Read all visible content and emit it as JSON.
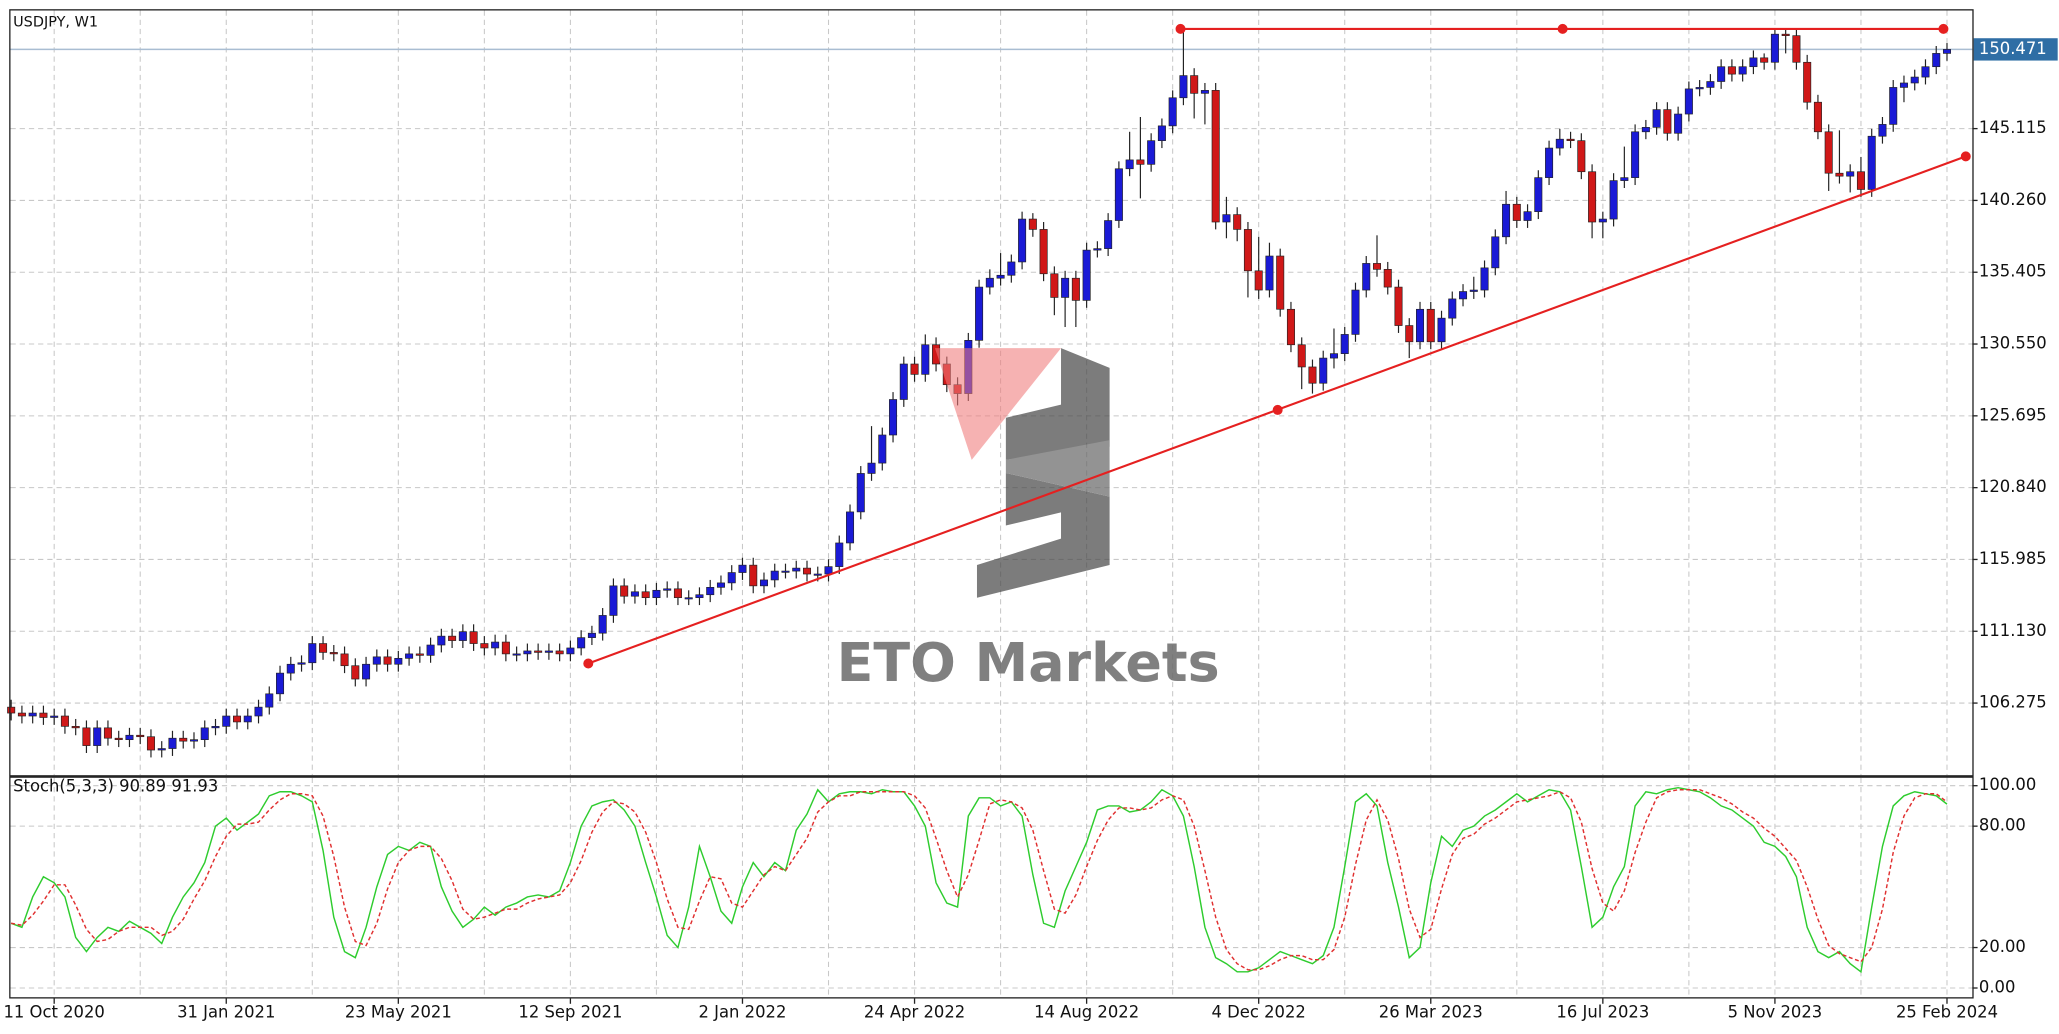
{
  "chart_data": {
    "type": "candlestick",
    "title": "USDJPY, W1",
    "categories": [
      null,
      null,
      null,
      null,
      "11 Oct 2020",
      null,
      null,
      null,
      null,
      null,
      null,
      null,
      null,
      null,
      null,
      null,
      null,
      null,
      null,
      null,
      "31 Jan 2021",
      null,
      null,
      null,
      null,
      null,
      null,
      null,
      null,
      null,
      null,
      null,
      null,
      null,
      null,
      null,
      "23 May 2021",
      null,
      null,
      null,
      null,
      null,
      null,
      null,
      null,
      null,
      null,
      null,
      null,
      null,
      null,
      null,
      "12 Sep 2021",
      null,
      null,
      null,
      null,
      null,
      null,
      null,
      null,
      null,
      null,
      null,
      null,
      null,
      null,
      null,
      "2 Jan 2022",
      null,
      null,
      null,
      null,
      null,
      null,
      null,
      null,
      null,
      null,
      null,
      null,
      null,
      null,
      null,
      "24 Apr 2022",
      null,
      null,
      null,
      null,
      null,
      null,
      null,
      null,
      null,
      null,
      null,
      null,
      null,
      null,
      null,
      "14 Aug 2022",
      null,
      null,
      null,
      null,
      null,
      null,
      null,
      null,
      null,
      null,
      null,
      null,
      null,
      null,
      null,
      "4 Dec 2022",
      null,
      null,
      null,
      null,
      null,
      null,
      null,
      null,
      null,
      null,
      null,
      null,
      null,
      null,
      null,
      "26 Mar 2023",
      null,
      null,
      null,
      null,
      null,
      null,
      null,
      null,
      null,
      null,
      null,
      null,
      null,
      null,
      null,
      "16 Jul 2023",
      null,
      null,
      null,
      null,
      null,
      null,
      null,
      null,
      null,
      null,
      null,
      null,
      null,
      null,
      null,
      "5 Nov 2023",
      null,
      null,
      null,
      null,
      null,
      null,
      null,
      null,
      null,
      null,
      null,
      null,
      null,
      null,
      null,
      "25 Feb 2024"
    ],
    "open": [
      106.0,
      105.6,
      105.4,
      105.6,
      105.3,
      105.4,
      104.7,
      104.6,
      103.4,
      104.6,
      103.9,
      103.8,
      104.1,
      104.0,
      103.1,
      103.2,
      103.9,
      103.7,
      103.8,
      104.6,
      104.7,
      105.4,
      105.0,
      105.4,
      106.0,
      106.9,
      108.3,
      108.9,
      109.0,
      110.3,
      109.7,
      109.6,
      108.8,
      107.9,
      108.9,
      109.4,
      108.9,
      109.3,
      109.6,
      109.5,
      110.2,
      110.8,
      110.5,
      111.1,
      110.3,
      110.0,
      110.4,
      109.6,
      109.6,
      109.8,
      109.7,
      109.8,
      109.6,
      110.0,
      110.7,
      111.0,
      112.2,
      114.2,
      113.5,
      113.8,
      113.4,
      113.9,
      114.0,
      113.4,
      113.4,
      113.6,
      114.1,
      114.4,
      115.1,
      115.6,
      114.2,
      114.6,
      115.2,
      115.2,
      115.4,
      115.0,
      115.0,
      115.5,
      117.1,
      119.2,
      121.8,
      122.5,
      124.4,
      126.8,
      129.2,
      128.5,
      130.5,
      129.2,
      127.8,
      127.2,
      130.8,
      134.4,
      135.0,
      135.2,
      136.1,
      139.0,
      138.3,
      135.3,
      133.7,
      135.0,
      133.5,
      136.9,
      137.0,
      138.9,
      142.4,
      143.0,
      142.7,
      144.3,
      145.3,
      147.2,
      148.7,
      147.5,
      147.7,
      138.8,
      139.3,
      138.3,
      135.5,
      134.2,
      136.5,
      132.9,
      130.5,
      129.0,
      127.9,
      129.6,
      129.9,
      131.2,
      134.2,
      136.0,
      135.6,
      134.4,
      131.8,
      130.7,
      132.9,
      130.7,
      132.3,
      133.6,
      134.1,
      134.2,
      135.7,
      137.8,
      140.0,
      138.9,
      139.5,
      141.8,
      143.8,
      144.4,
      144.3,
      142.2,
      138.8,
      139.0,
      141.6,
      141.8,
      144.9,
      145.2,
      146.4,
      144.8,
      146.1,
      147.8,
      147.9,
      148.3,
      149.3,
      148.8,
      149.3,
      149.9,
      149.6,
      151.5,
      151.4,
      149.6,
      146.9,
      144.9,
      142.1,
      141.9,
      142.2,
      141.0,
      144.6,
      145.4,
      147.9,
      148.2,
      148.6,
      149.3,
      150.2
    ],
    "high": [
      106.5,
      106.1,
      106.1,
      106.1,
      105.9,
      105.9,
      105.2,
      105.1,
      105.1,
      105.1,
      104.4,
      104.6,
      104.6,
      104.5,
      103.7,
      104.4,
      104.4,
      104.3,
      105.1,
      105.2,
      105.9,
      105.9,
      105.9,
      106.5,
      107.4,
      108.8,
      109.4,
      109.5,
      110.8,
      110.8,
      110.2,
      110.1,
      109.3,
      109.4,
      109.9,
      109.9,
      109.8,
      110.1,
      110.1,
      110.7,
      111.3,
      111.3,
      111.6,
      111.6,
      110.8,
      110.9,
      110.9,
      110.1,
      110.3,
      110.3,
      110.3,
      110.3,
      110.5,
      111.2,
      111.5,
      112.7,
      114.7,
      114.7,
      114.3,
      114.3,
      114.4,
      114.5,
      114.5,
      113.9,
      114.1,
      114.6,
      114.9,
      115.6,
      116.1,
      116.1,
      115.1,
      115.7,
      115.7,
      115.9,
      115.9,
      115.5,
      116.0,
      117.6,
      119.7,
      122.3,
      125.0,
      124.9,
      127.3,
      129.7,
      129.7,
      131.2,
      131.0,
      129.7,
      128.3,
      131.3,
      134.9,
      135.6,
      136.7,
      136.6,
      139.5,
      139.4,
      138.8,
      135.8,
      135.5,
      135.5,
      137.4,
      137.5,
      139.4,
      142.9,
      144.9,
      145.9,
      144.8,
      145.8,
      147.7,
      151.9,
      149.2,
      148.2,
      148.2,
      140.5,
      139.8,
      138.8,
      137.8,
      137.4,
      137.0,
      133.4,
      131.0,
      129.5,
      130.1,
      131.6,
      131.7,
      134.7,
      136.5,
      137.9,
      136.1,
      134.9,
      132.3,
      133.4,
      133.4,
      132.8,
      134.1,
      134.6,
      135.1,
      136.2,
      138.3,
      140.9,
      140.5,
      140.0,
      142.3,
      144.3,
      145.1,
      144.9,
      144.8,
      142.7,
      139.5,
      142.1,
      143.9,
      145.4,
      145.7,
      146.9,
      146.9,
      146.6,
      148.3,
      148.4,
      148.8,
      149.8,
      149.8,
      149.8,
      150.4,
      150.2,
      151.9,
      151.9,
      151.9,
      150.1,
      147.4,
      145.4,
      145.0,
      142.7,
      143.2,
      145.1,
      145.9,
      148.4,
      148.7,
      149.1,
      149.8,
      150.7,
      150.9
    ],
    "low": [
      105.1,
      104.9,
      104.9,
      104.8,
      104.8,
      104.2,
      104.1,
      102.9,
      102.9,
      103.4,
      103.3,
      103.3,
      103.5,
      102.6,
      102.6,
      102.7,
      103.2,
      103.2,
      103.3,
      104.1,
      104.2,
      104.5,
      104.5,
      104.9,
      105.5,
      106.4,
      107.8,
      108.4,
      108.5,
      109.2,
      109.1,
      108.3,
      107.4,
      107.4,
      108.4,
      108.4,
      108.4,
      108.8,
      109.0,
      109.0,
      109.7,
      110.0,
      110.0,
      109.8,
      109.5,
      109.5,
      109.1,
      109.1,
      109.1,
      109.2,
      109.2,
      109.1,
      109.1,
      109.5,
      110.2,
      110.5,
      111.7,
      113.0,
      113.0,
      112.9,
      112.9,
      113.4,
      112.9,
      112.9,
      112.9,
      113.1,
      113.6,
      113.9,
      114.6,
      113.7,
      113.7,
      114.1,
      114.7,
      114.7,
      114.5,
      114.5,
      114.5,
      115.0,
      116.6,
      118.7,
      121.3,
      122.0,
      123.9,
      126.3,
      128.0,
      128.0,
      128.7,
      127.3,
      126.4,
      126.7,
      130.3,
      133.9,
      134.5,
      134.7,
      135.6,
      137.8,
      134.8,
      132.5,
      131.7,
      131.7,
      133.0,
      136.4,
      136.5,
      138.4,
      141.9,
      140.4,
      142.2,
      143.8,
      144.8,
      146.7,
      145.8,
      145.4,
      138.3,
      137.7,
      137.5,
      133.7,
      133.6,
      133.7,
      132.4,
      130.0,
      127.5,
      127.2,
      127.4,
      128.9,
      129.4,
      130.7,
      133.7,
      135.1,
      133.9,
      131.3,
      129.6,
      130.2,
      130.2,
      130.2,
      131.8,
      133.1,
      133.6,
      133.7,
      135.2,
      137.3,
      138.4,
      138.4,
      139.0,
      141.3,
      143.3,
      143.8,
      141.7,
      137.7,
      137.7,
      138.5,
      141.1,
      141.3,
      144.4,
      144.7,
      144.3,
      144.3,
      145.6,
      147.3,
      147.4,
      147.8,
      148.3,
      148.3,
      148.8,
      149.1,
      149.1,
      150.2,
      149.1,
      146.4,
      144.4,
      140.9,
      141.4,
      140.8,
      140.5,
      140.5,
      144.1,
      144.9,
      146.9,
      147.7,
      148.1,
      148.8,
      149.7
    ],
    "close": [
      105.6,
      105.4,
      105.6,
      105.3,
      105.4,
      104.7,
      104.6,
      103.4,
      104.6,
      103.9,
      103.8,
      104.1,
      104.0,
      103.1,
      103.2,
      103.9,
      103.7,
      103.8,
      104.6,
      104.7,
      105.4,
      105.0,
      105.4,
      106.0,
      106.9,
      108.3,
      108.9,
      109.0,
      110.3,
      109.7,
      109.6,
      108.8,
      107.9,
      108.9,
      109.4,
      108.9,
      109.3,
      109.6,
      109.5,
      110.2,
      110.8,
      110.5,
      111.1,
      110.3,
      110.0,
      110.4,
      109.6,
      109.6,
      109.8,
      109.7,
      109.8,
      109.6,
      110.0,
      110.7,
      111.0,
      112.2,
      114.2,
      113.5,
      113.8,
      113.4,
      113.9,
      114.0,
      113.4,
      113.4,
      113.6,
      114.1,
      114.4,
      115.1,
      115.6,
      114.2,
      114.6,
      115.2,
      115.2,
      115.4,
      115.0,
      115.0,
      115.5,
      117.1,
      119.2,
      121.8,
      122.5,
      124.4,
      126.8,
      129.2,
      128.5,
      130.5,
      129.2,
      127.8,
      127.2,
      130.8,
      134.4,
      135.0,
      135.2,
      136.1,
      139.0,
      138.3,
      135.3,
      133.7,
      135.0,
      133.5,
      136.9,
      137.0,
      138.9,
      142.4,
      143.0,
      142.7,
      144.3,
      145.3,
      147.2,
      148.7,
      147.5,
      147.7,
      138.8,
      139.3,
      138.3,
      135.5,
      134.2,
      136.5,
      132.9,
      130.5,
      129.0,
      127.9,
      129.6,
      129.9,
      131.2,
      134.2,
      136.0,
      135.6,
      134.4,
      131.8,
      130.7,
      132.9,
      130.7,
      132.3,
      133.6,
      134.1,
      134.2,
      135.7,
      137.8,
      140.0,
      138.9,
      139.5,
      141.8,
      143.8,
      144.4,
      144.3,
      142.2,
      138.8,
      139.0,
      141.6,
      141.8,
      144.9,
      145.2,
      146.4,
      144.8,
      146.1,
      147.8,
      147.9,
      148.3,
      149.3,
      148.8,
      149.3,
      149.9,
      149.6,
      151.5,
      151.4,
      149.6,
      146.9,
      144.9,
      142.1,
      141.9,
      142.2,
      141.0,
      144.6,
      145.4,
      147.9,
      148.2,
      148.6,
      149.3,
      150.2,
      150.471
    ],
    "up_color": "#1a1ad6",
    "down_color": "#d01818",
    "grid": true,
    "ylim": [
      101.4,
      153.1
    ],
    "yticks": [
      {
        "value": 145.115,
        "label": "145.115"
      },
      {
        "value": 140.26,
        "label": "140.260"
      },
      {
        "value": 135.405,
        "label": "135.405"
      },
      {
        "value": 130.55,
        "label": "130.550"
      },
      {
        "value": 125.695,
        "label": "125.695"
      },
      {
        "value": 120.84,
        "label": "120.840"
      },
      {
        "value": 115.985,
        "label": "115.985"
      },
      {
        "value": 111.13,
        "label": "111.130"
      },
      {
        "value": 106.275,
        "label": "106.275"
      }
    ],
    "price_line": {
      "value": 150.471,
      "label": "150.471",
      "color": "#2f6ea5"
    },
    "watermark": "ETO Markets",
    "indicator": {
      "type": "line",
      "label": "Stoch(5,3,3) 90.89 91.93",
      "ylim": [
        -5.2,
        103.9
      ],
      "yticks": [
        {
          "value": 100,
          "label": "100.00"
        },
        {
          "value": 80,
          "label": "80.00"
        },
        {
          "value": 20,
          "label": "20.00"
        },
        {
          "value": 0,
          "label": "0.00"
        }
      ],
      "series": [
        {
          "color": "#2ecc2e",
          "dashed": false,
          "values": [
            32,
            30,
            45,
            55,
            52,
            45,
            25,
            18,
            25,
            30,
            28,
            33,
            30,
            27,
            22,
            35,
            45,
            52,
            62,
            80,
            84,
            78,
            82,
            86,
            95,
            97,
            97,
            95,
            92,
            68,
            35,
            18,
            15,
            30,
            50,
            66,
            70,
            68,
            72,
            70,
            50,
            38,
            30,
            34,
            40,
            36,
            40,
            42,
            45,
            46,
            45,
            48,
            62,
            80,
            90,
            92,
            93,
            88,
            80,
            62,
            45,
            26,
            20,
            40,
            70,
            55,
            38,
            32,
            50,
            62,
            55,
            62,
            58,
            78,
            86,
            98,
            92,
            96,
            97,
            97,
            96,
            98,
            97,
            97,
            90,
            80,
            52,
            42,
            40,
            85,
            94,
            94,
            90,
            92,
            85,
            56,
            32,
            30,
            48,
            60,
            72,
            88,
            90,
            90,
            87,
            88,
            92,
            98,
            95,
            85,
            60,
            30,
            15,
            12,
            8,
            8,
            10,
            14,
            18,
            16,
            14,
            12,
            16,
            30,
            60,
            92,
            96,
            90,
            62,
            40,
            15,
            20,
            52,
            75,
            70,
            78,
            80,
            85,
            88,
            92,
            96,
            92,
            95,
            98,
            97,
            88,
            60,
            30,
            35,
            50,
            60,
            90,
            97,
            96,
            98,
            99,
            98,
            97,
            94,
            90,
            88,
            84,
            80,
            72,
            70,
            65,
            55,
            30,
            18,
            15,
            18,
            12,
            8,
            40,
            70,
            90,
            95,
            97,
            96,
            95,
            90.89
          ]
        },
        {
          "color": "#e03030",
          "dashed": true,
          "values": [
            32,
            31,
            36,
            43,
            51,
            51,
            41,
            29,
            23,
            24,
            28,
            30,
            30,
            30,
            26,
            28,
            34,
            44,
            53,
            65,
            75,
            81,
            81,
            82,
            88,
            93,
            96,
            96,
            95,
            85,
            65,
            40,
            23,
            21,
            32,
            49,
            62,
            68,
            70,
            70,
            64,
            53,
            39,
            34,
            35,
            37,
            39,
            39,
            42,
            44,
            45,
            46,
            52,
            63,
            77,
            87,
            92,
            91,
            87,
            77,
            62,
            44,
            30,
            29,
            43,
            55,
            54,
            42,
            40,
            48,
            56,
            60,
            58,
            66,
            74,
            87,
            92,
            95,
            95,
            97,
            97,
            97,
            97,
            97,
            95,
            89,
            74,
            58,
            45,
            56,
            73,
            91,
            93,
            92,
            89,
            78,
            58,
            39,
            37,
            46,
            60,
            73,
            83,
            89,
            89,
            88,
            89,
            93,
            95,
            93,
            80,
            58,
            35,
            19,
            12,
            9,
            9,
            11,
            14,
            16,
            16,
            14,
            14,
            19,
            35,
            61,
            83,
            93,
            83,
            64,
            39,
            25,
            29,
            49,
            66,
            74,
            76,
            81,
            84,
            88,
            92,
            93,
            94,
            95,
            97,
            94,
            82,
            59,
            42,
            38,
            48,
            67,
            82,
            94,
            97,
            98,
            98,
            98,
            96,
            94,
            91,
            87,
            84,
            79,
            75,
            69,
            63,
            50,
            34,
            21,
            17,
            15,
            13,
            20,
            39,
            67,
            85,
            94,
            96,
            96,
            91.93
          ]
        }
      ]
    }
  }
}
